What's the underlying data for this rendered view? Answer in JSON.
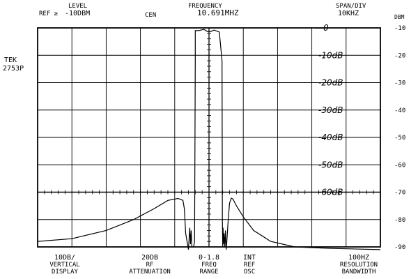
{
  "instrument": {
    "brand": "TEK",
    "model": "2753P"
  },
  "header": {
    "level_label": "LEVEL",
    "ref_label": "REF ≥",
    "ref_value": "-10DBM",
    "cen_label": "CEN",
    "frequency_label": "FREQUENCY",
    "frequency_value": "10.691MHZ",
    "span_label": "SPAN/DIV",
    "span_value": "10KHZ"
  },
  "footer": {
    "vertical_value": "10DB/",
    "vertical_label_1": "VERTICAL",
    "vertical_label_2": "DISPLAY",
    "rf_value": "20DB",
    "rf_label_1": "RF",
    "rf_label_2": "ATTENUATION",
    "freq_value": "0-1.8",
    "freq_label_1": "FREQ",
    "freq_label_2": "RANGE",
    "ref_value": "INT",
    "ref_label_1": "REF",
    "ref_label_2": "OSC",
    "rbw_value": "100HZ",
    "rbw_label_1": "RESOLUTION",
    "rbw_label_2": "BANDWIDTH"
  },
  "annotations": [
    "—0",
    "-10dB",
    "-20dB",
    "-30dB",
    "-40dB",
    "-50dB",
    "-60dB"
  ],
  "chart_data": {
    "type": "line",
    "ylabel": "DBM",
    "y_ticks": [
      "-10",
      "-20",
      "-30",
      "-40",
      "-50",
      "-60",
      "-70",
      "-80",
      "-90"
    ],
    "ylim": [
      -90,
      -10
    ],
    "xlim": [
      -50,
      50
    ],
    "x_unit": "kHz offset from 10.691 MHz",
    "grid": true,
    "series": [
      {
        "values_x": [
          -50,
          -40,
          -30,
          -22,
          -16,
          -12,
          -9,
          -7.6,
          -7.2,
          -6.8,
          -6.0,
          -5.6,
          -5.4,
          -5.2,
          -5.0,
          -4.5,
          -4.2,
          -4.0,
          -4.0,
          -3.0,
          -1.5,
          -0.5,
          0.5,
          1.5,
          3.0,
          3.8,
          3.9,
          4.0,
          4.1,
          4.2,
          4.4,
          4.6,
          4.8,
          5.0,
          5.2,
          5.6,
          6.0,
          6.5,
          7.0,
          8.0,
          10.0,
          13.0,
          18.0,
          25.0,
          35.0,
          50.0
        ],
        "values_y": [
          -88,
          -87,
          -84,
          -80,
          -76,
          -73,
          -72.3,
          -73,
          -76,
          -85,
          -91,
          -83,
          -89,
          -84,
          -90,
          -90,
          -88,
          -22,
          -11,
          -11,
          -10.5,
          -11.3,
          -11.3,
          -10.8,
          -11.5,
          -22,
          -80,
          -90,
          -83,
          -89,
          -85,
          -90,
          -84,
          -91,
          -88,
          -80,
          -74,
          -72.2,
          -72.5,
          -75,
          -79,
          -84,
          -88,
          -90,
          -90.5,
          -91
        ]
      }
    ]
  }
}
